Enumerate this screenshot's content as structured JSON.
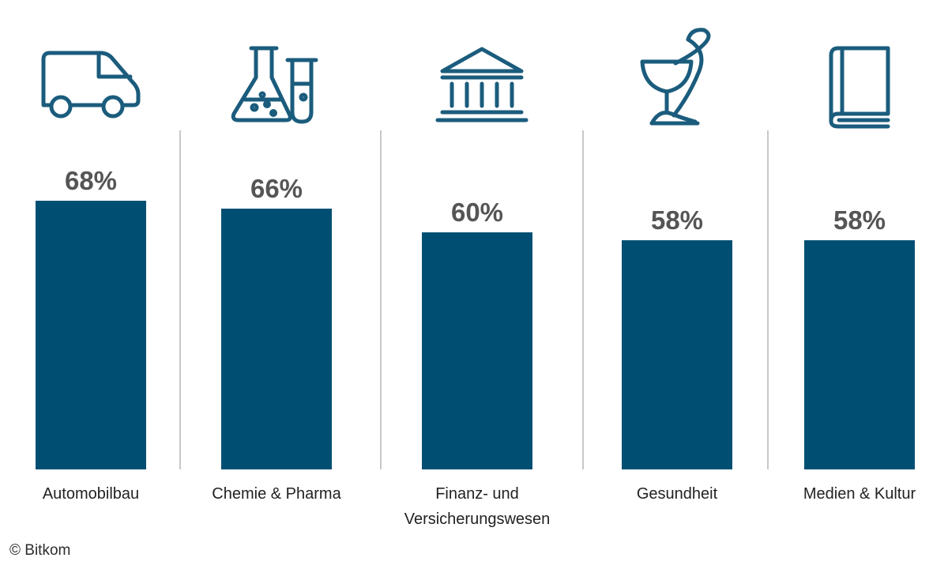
{
  "chart_data": {
    "type": "bar",
    "categories": [
      "Automobilbau",
      "Chemie & Pharma",
      "Finanz- und Versicherungswesen",
      "Gesundheit",
      "Medien & Kultur"
    ],
    "category_label_lines": [
      [
        "Automobilbau"
      ],
      [
        "Chemie & Pharma"
      ],
      [
        "Finanz- und",
        "Versicherungswesen"
      ],
      [
        "Gesundheit"
      ],
      [
        "Medien & Kultur"
      ]
    ],
    "values": [
      68,
      66,
      60,
      58,
      58
    ],
    "value_labels": [
      "68%",
      "66%",
      "60%",
      "58%",
      "58%"
    ],
    "unit": "%",
    "ylim": [
      0,
      68
    ],
    "icons": [
      "van-icon",
      "lab-flask-icon",
      "bank-building-icon",
      "pharmacy-icon",
      "book-icon"
    ],
    "grid": false,
    "legend": "none"
  },
  "colors": {
    "bar": "#004f73",
    "icon": "#1b5c7d",
    "value_text": "#555555",
    "label_text": "#222222",
    "divider": "#c8c8c8"
  },
  "credit": "© Bitkom"
}
